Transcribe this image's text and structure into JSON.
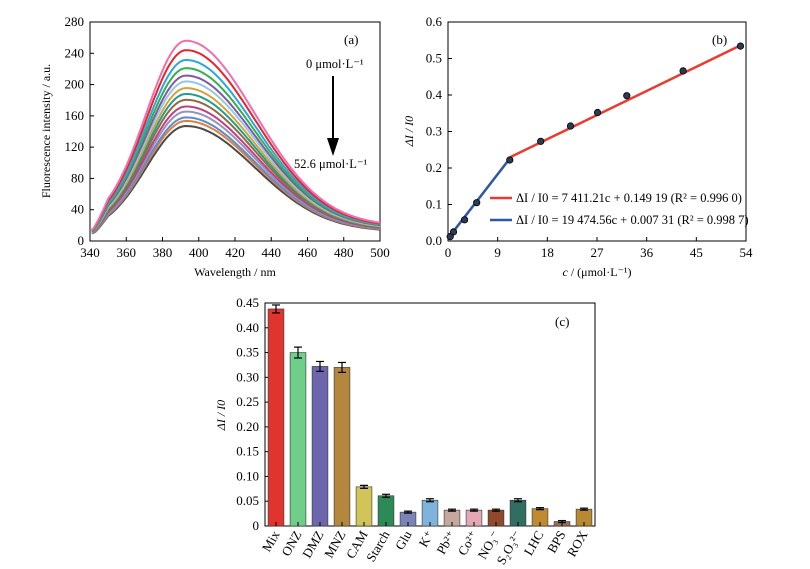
{
  "chart_data": [
    {
      "panel": "(a)",
      "type": "line",
      "xlabel": "Wavelength / nm",
      "ylabel": "Fluorescence intensity / a.u.",
      "xlim": [
        340,
        500
      ],
      "ylim": [
        0,
        280
      ],
      "xticks": [
        340,
        360,
        380,
        400,
        420,
        440,
        460,
        480,
        500
      ],
      "yticks": [
        0,
        40,
        80,
        120,
        160,
        200,
        240,
        280
      ],
      "peak_x": 393,
      "series": [
        {
          "color": "#ee6fb0",
          "peak": 249,
          "end": 19
        },
        {
          "color": "#e8242a",
          "peak": 238,
          "end": 18
        },
        {
          "color": "#2ba7df",
          "peak": 226,
          "end": 17.5
        },
        {
          "color": "#31b04c",
          "peak": 216,
          "end": 17
        },
        {
          "color": "#7e59a6",
          "peak": 207,
          "end": 16.5
        },
        {
          "color": "#93c7e6",
          "peak": 200,
          "end": 16
        },
        {
          "color": "#d9a13b",
          "peak": 192,
          "end": 15.5
        },
        {
          "color": "#1f9e8c",
          "peak": 185,
          "end": 15
        },
        {
          "color": "#8c6d3f",
          "peak": 178,
          "end": 14.5
        },
        {
          "color": "#c0407d",
          "peak": 170,
          "end": 14
        },
        {
          "color": "#9c8fc0",
          "peak": 164,
          "end": 13.5
        },
        {
          "color": "#5a8ccf",
          "peak": 157,
          "end": 13
        },
        {
          "color": "#e07e3a",
          "peak": 153,
          "end": 12.5
        },
        {
          "color": "#4a4a4a",
          "peak": 147,
          "end": 12
        }
      ],
      "annotations": {
        "top": "0 μmol·L⁻¹",
        "bottom": "52.6 μmol·L⁻¹",
        "panel": "(a)"
      }
    },
    {
      "panel": "(b)",
      "type": "scatter",
      "xlabel_italic": "c",
      "xlabel_rest": " / (μmol·L⁻¹)",
      "ylabel": "ΔI / I0",
      "xlim": [
        0,
        54
      ],
      "ylim": [
        0,
        0.6
      ],
      "xticks": [
        0,
        9,
        18,
        27,
        36,
        45,
        54
      ],
      "yticks": [
        0.0,
        0.1,
        0.2,
        0.3,
        0.4,
        0.5,
        0.6
      ],
      "points": [
        {
          "x": 0.4,
          "y": 0.012
        },
        {
          "x": 1.0,
          "y": 0.025
        },
        {
          "x": 3.0,
          "y": 0.058
        },
        {
          "x": 5.2,
          "y": 0.105
        },
        {
          "x": 11.2,
          "y": 0.222
        },
        {
          "x": 16.8,
          "y": 0.273
        },
        {
          "x": 22.2,
          "y": 0.315
        },
        {
          "x": 27.1,
          "y": 0.352
        },
        {
          "x": 32.4,
          "y": 0.398
        },
        {
          "x": 42.6,
          "y": 0.466
        },
        {
          "x": 53.0,
          "y": 0.534
        }
      ],
      "fits": [
        {
          "color": "#ec3b2e",
          "x": [
            11.2,
            53.0
          ],
          "y": [
            0.229,
            0.536
          ],
          "label": "ΔI / I0 = 7 411.21c + 0.149 19 (R² = 0.996 0)"
        },
        {
          "color": "#2f57a6",
          "x": [
            0.0,
            11.2
          ],
          "y": [
            0.007,
            0.226
          ],
          "label": "ΔI / I0 = 19 474.56c + 0.007 31 (R² = 0.998 7)"
        }
      ],
      "panel_label": "(b)"
    },
    {
      "panel": "(c)",
      "type": "bar",
      "ylabel": "ΔI / I0",
      "ylim": [
        0,
        0.45
      ],
      "yticks": [
        "0",
        "0.05",
        "0.10",
        "0.15",
        "0.20",
        "0.25",
        "0.30",
        "0.35",
        "0.40",
        "0.45"
      ],
      "categories": [
        "Mix",
        "ONZ",
        "DMZ",
        "MNZ",
        "CAM",
        "Starch",
        "Glu",
        "K⁺",
        "Pb²⁺",
        "Co²⁺",
        "NO₃⁻",
        "S₂O₃²⁻",
        "LHC",
        "BPS",
        "ROX"
      ],
      "values": [
        0.438,
        0.35,
        0.322,
        0.32,
        0.079,
        0.061,
        0.028,
        0.052,
        0.032,
        0.032,
        0.032,
        0.052,
        0.035,
        0.009,
        0.034
      ],
      "errors": [
        0.008,
        0.011,
        0.01,
        0.01,
        0.003,
        0.003,
        0.002,
        0.003,
        0.002,
        0.002,
        0.002,
        0.003,
        0.002,
        0.002,
        0.002
      ],
      "colors": [
        "#e0352f",
        "#6fcf8a",
        "#6d66ad",
        "#b3873e",
        "#d1c55a",
        "#2c8a56",
        "#7b84b6",
        "#7fb3dc",
        "#c6a7a0",
        "#e2a8b6",
        "#8e4a2a",
        "#2f6e61",
        "#c08a2e",
        "#9b6f4c",
        "#b88933"
      ],
      "panel_label": "(c)"
    }
  ]
}
